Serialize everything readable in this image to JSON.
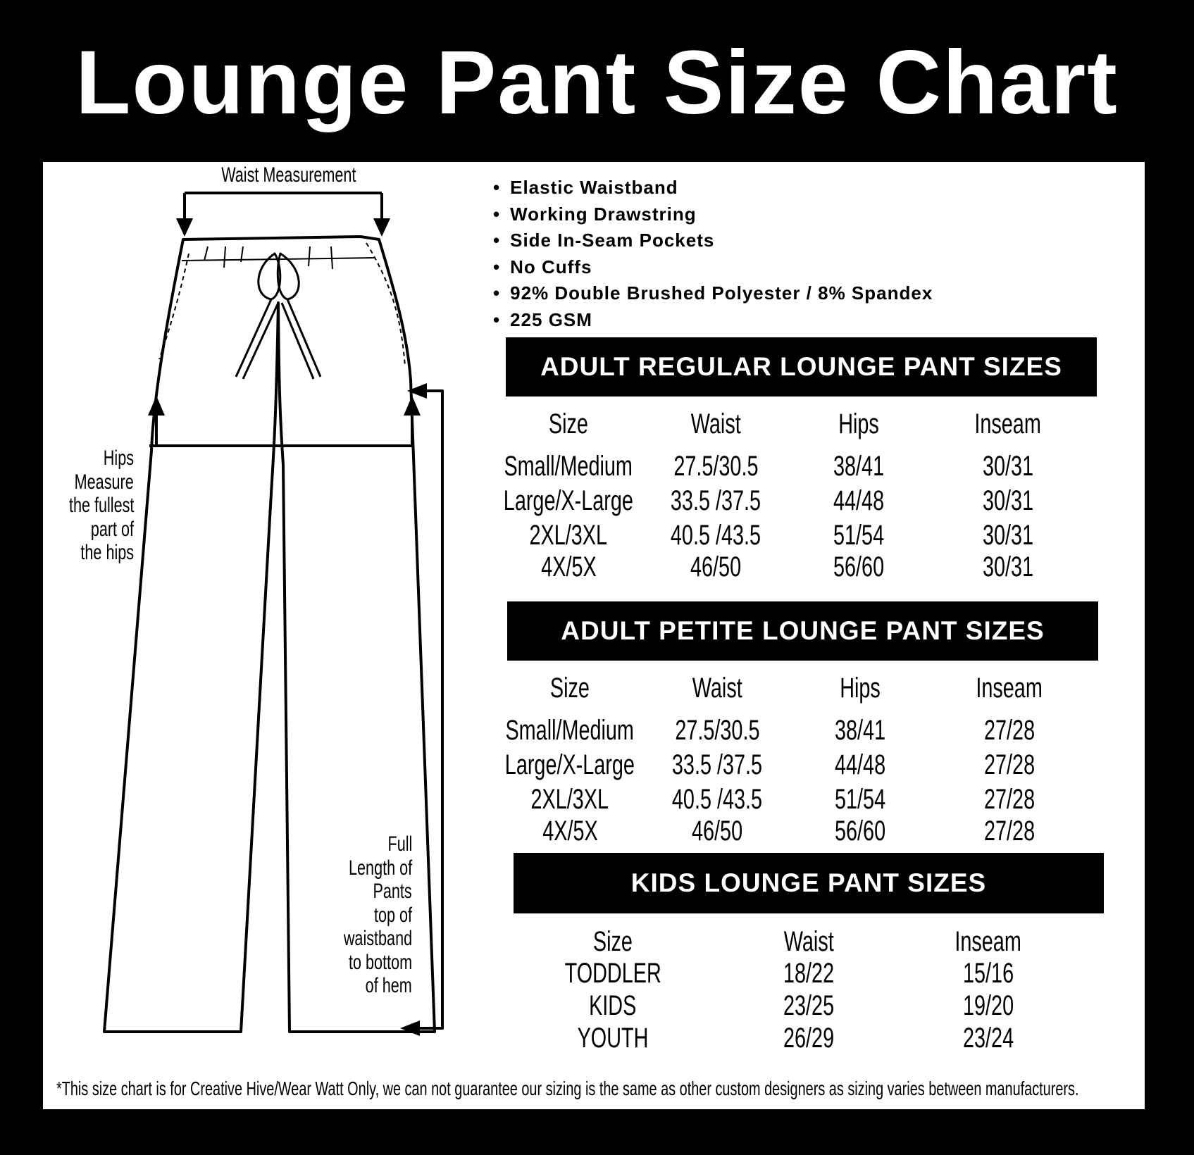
{
  "title": "Lounge Pant Size Chart",
  "diagram": {
    "waist_label": "Waist Measurement",
    "hips_label": [
      "Hips",
      "Measure",
      "the fullest",
      "part of",
      "the hips"
    ],
    "length_label": [
      "Full",
      "Length of",
      "Pants",
      "top of",
      "waistband",
      "to bottom",
      "of hem"
    ]
  },
  "features": [
    "Elastic Waistband",
    "Working Drawstring",
    "Side In-Seam Pockets",
    "No Cuffs",
    "92% Double Brushed Polyester / 8% Spandex",
    "225 GSM"
  ],
  "regular": {
    "heading": "ADULT REGULAR LOUNGE PANT SIZES",
    "columns": [
      "Size",
      "Waist",
      "Hips",
      "Inseam"
    ],
    "rows": [
      [
        "Small/Medium",
        "27.5/30.5",
        "38/41",
        "30/31"
      ],
      [
        "Large/X-Large",
        "33.5 /37.5",
        "44/48",
        "30/31"
      ],
      [
        "2XL/3XL",
        "40.5 /43.5",
        "51/54",
        "30/31"
      ],
      [
        "4X/5X",
        "46/50",
        "56/60",
        "30/31"
      ]
    ]
  },
  "petite": {
    "heading": "ADULT PETITE LOUNGE PANT SIZES",
    "columns": [
      "Size",
      "Waist",
      "Hips",
      "Inseam"
    ],
    "rows": [
      [
        "Small/Medium",
        "27.5/30.5",
        "38/41",
        "27/28"
      ],
      [
        "Large/X-Large",
        "33.5 /37.5",
        "44/48",
        "27/28"
      ],
      [
        "2XL/3XL",
        "40.5 /43.5",
        "51/54",
        "27/28"
      ],
      [
        "4X/5X",
        "46/50",
        "56/60",
        "27/28"
      ]
    ]
  },
  "kids": {
    "heading": "KIDS LOUNGE PANT SIZES",
    "columns": [
      "Size",
      "Waist",
      "Inseam"
    ],
    "rows": [
      [
        "TODDLER",
        "18/22",
        "15/16"
      ],
      [
        "KIDS",
        "23/25",
        "19/20"
      ],
      [
        "YOUTH",
        "26/29",
        "23/24"
      ]
    ]
  },
  "footnote": "*This size chart is for Creative Hive/Wear Watt Only, we can not guarantee our sizing is the same as other custom designers as sizing varies  between manufacturers."
}
